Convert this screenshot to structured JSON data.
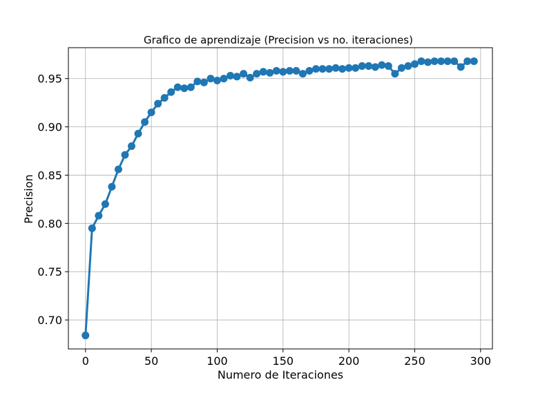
{
  "chart_data": {
    "type": "line",
    "title": "Grafico de aprendizaje (Precision vs no. iteraciones)",
    "xlabel": "Numero de Iteraciones",
    "ylabel": "Precision",
    "xlim": [
      -13,
      309
    ],
    "ylim": [
      0.67,
      0.982
    ],
    "xticks": [
      0,
      50,
      100,
      150,
      200,
      250,
      300
    ],
    "xtick_labels": [
      "0",
      "50",
      "100",
      "150",
      "200",
      "250",
      "300"
    ],
    "yticks": [
      0.7,
      0.75,
      0.8,
      0.85,
      0.9,
      0.95
    ],
    "ytick_labels": [
      "0.70",
      "0.75",
      "0.80",
      "0.85",
      "0.90",
      "0.95"
    ],
    "grid": true,
    "legend": "none",
    "color": "#1f77b4",
    "series": [
      {
        "x": [
          0,
          5,
          10,
          15,
          20,
          25,
          30,
          35,
          40,
          45,
          50,
          55,
          60,
          65,
          70,
          75,
          80,
          85,
          90,
          95,
          100,
          105,
          110,
          115,
          120,
          125,
          130,
          135,
          140,
          145,
          150,
          155,
          160,
          165,
          170,
          175,
          180,
          185,
          190,
          195,
          200,
          205,
          210,
          215,
          220,
          225,
          230,
          235,
          240,
          245,
          250,
          255,
          260,
          265,
          270,
          275,
          280,
          285,
          290,
          295
        ],
        "values": [
          0.684,
          0.795,
          0.808,
          0.82,
          0.838,
          0.856,
          0.871,
          0.88,
          0.893,
          0.905,
          0.915,
          0.924,
          0.93,
          0.936,
          0.941,
          0.94,
          0.941,
          0.947,
          0.946,
          0.95,
          0.948,
          0.95,
          0.953,
          0.952,
          0.955,
          0.951,
          0.955,
          0.957,
          0.956,
          0.958,
          0.957,
          0.958,
          0.958,
          0.955,
          0.958,
          0.96,
          0.96,
          0.96,
          0.961,
          0.96,
          0.961,
          0.961,
          0.963,
          0.963,
          0.962,
          0.964,
          0.963,
          0.955,
          0.961,
          0.963,
          0.965,
          0.968,
          0.967,
          0.968,
          0.968,
          0.968,
          0.968,
          0.962,
          0.968,
          0.968
        ]
      }
    ]
  }
}
